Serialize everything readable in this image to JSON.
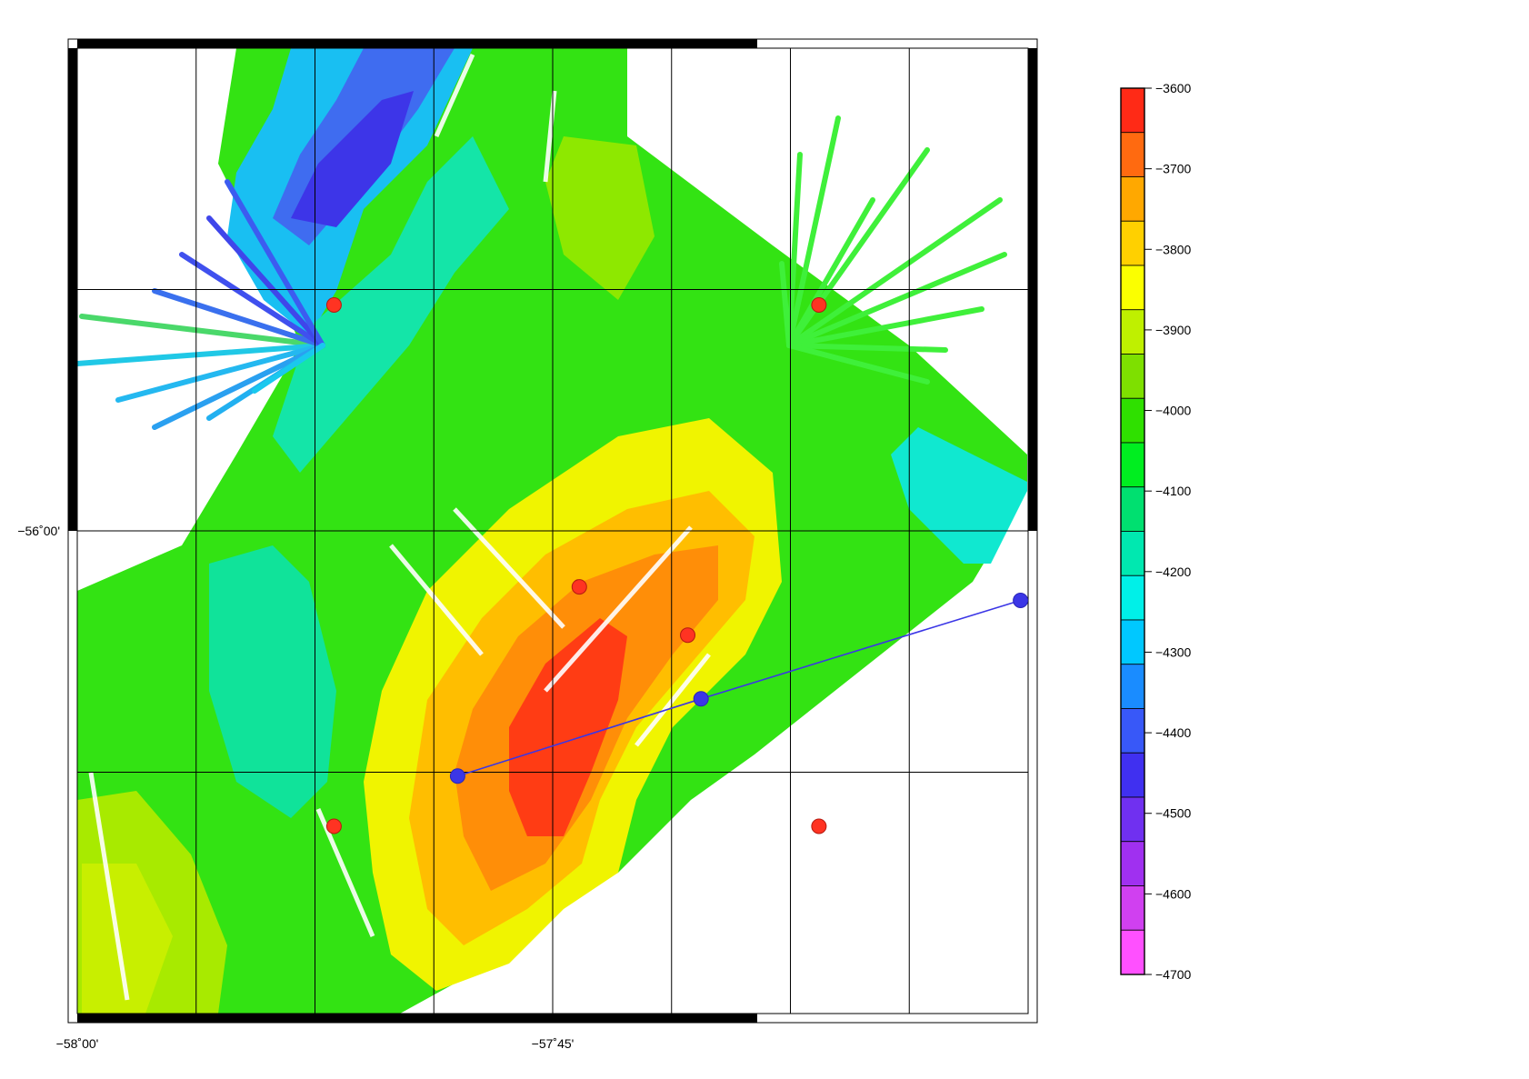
{
  "map": {
    "lon_labels": [
      {
        "text": "−58˚00'",
        "lon": -58.0
      },
      {
        "text": "−57˚45'",
        "lon": -57.75
      }
    ],
    "lat_labels": [
      {
        "text": "−56˚00'",
        "lat": -56.0
      }
    ],
    "bounds": {
      "lon_min": -58.0,
      "lon_max": -57.5,
      "lat_min": -56.25,
      "lat_max": -55.75
    },
    "red_markers": [
      {
        "lon": -57.865,
        "lat": -55.883
      },
      {
        "lon": -57.61,
        "lat": -55.883
      },
      {
        "lon": -57.736,
        "lat": -56.029
      },
      {
        "lon": -57.679,
        "lat": -56.054
      },
      {
        "lon": -57.865,
        "lat": -56.153
      },
      {
        "lon": -57.61,
        "lat": -56.153
      }
    ],
    "profile_line": [
      {
        "lon": -57.8,
        "lat": -56.127
      },
      {
        "lon": -57.672,
        "lat": -56.087
      },
      {
        "lon": -57.504,
        "lat": -56.036
      }
    ],
    "colors": {
      "red_marker": "#ff3322",
      "profile": "#3b36e6",
      "frame": "#000000"
    }
  },
  "colorbar": {
    "min": -4700,
    "max": -3600,
    "tick_labels": [
      "-3600",
      "-3700",
      "-3800",
      "-3900",
      "-4000",
      "-4100",
      "-4200",
      "-4300",
      "-4400",
      "-4500",
      "-4600",
      "-4700"
    ],
    "tick_values": [
      -3600,
      -3700,
      -3800,
      -3900,
      -4000,
      -4100,
      -4200,
      -4300,
      -4400,
      -4500,
      -4600,
      -4700
    ],
    "colors_top_to_bottom": [
      "#ff2a16",
      "#ff6a10",
      "#ffa800",
      "#ffd000",
      "#fbff00",
      "#bff000",
      "#7ee000",
      "#2fe000",
      "#00ee20",
      "#00e070",
      "#00e8b0",
      "#00f0e8",
      "#00c8ff",
      "#1a8cff",
      "#3858f8",
      "#4030f0",
      "#7030f0",
      "#a030f0",
      "#d040f0",
      "#ff50ff"
    ]
  }
}
